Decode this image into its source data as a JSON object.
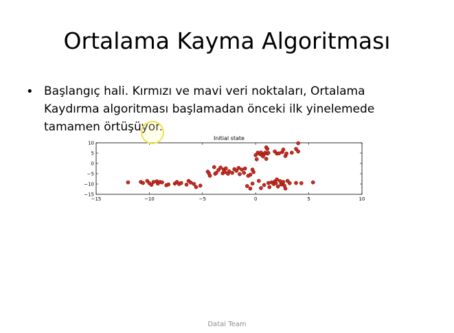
{
  "slide": {
    "title": "Ortalama Kayma Algoritması",
    "bullet": "Başlangıç hali. Kırmızı ve mavi veri noktaları, Ortalama Kaydırma algoritması başlamadan önceki ilk yinelemede tamamen örtüşüyor.",
    "footer": "Datai Team"
  },
  "chart_data": {
    "type": "scatter",
    "title": "Initial state",
    "xlabel": "",
    "ylabel": "",
    "xlim": [
      -15,
      10
    ],
    "ylim": [
      -15,
      10
    ],
    "xticks": [
      -15,
      -10,
      -5,
      0,
      5,
      10
    ],
    "yticks": [
      10,
      5,
      0,
      -5,
      -10,
      -15
    ],
    "xtick_labels": [
      "−15",
      "−10",
      "−5",
      "0",
      "5",
      "10"
    ],
    "ytick_labels": [
      "10",
      "5",
      "0",
      "−5",
      "−10",
      "−15"
    ],
    "grid": false,
    "legend": "none",
    "marker_color": "#cc2a1e",
    "points": [
      [
        -12.0,
        -9.2
      ],
      [
        -10.8,
        -9.0
      ],
      [
        -10.6,
        -9.5
      ],
      [
        -10.2,
        -8.5
      ],
      [
        -10.0,
        -9.6
      ],
      [
        -9.8,
        -10.4
      ],
      [
        -9.6,
        -9.0
      ],
      [
        -9.3,
        -8.7
      ],
      [
        -9.2,
        -9.8
      ],
      [
        -9.0,
        -9.0
      ],
      [
        -8.8,
        -9.2
      ],
      [
        -8.4,
        -10.6
      ],
      [
        -8.2,
        -10.2
      ],
      [
        -7.6,
        -9.8
      ],
      [
        -7.4,
        -9.0
      ],
      [
        -7.2,
        -10.0
      ],
      [
        -7.0,
        -9.5
      ],
      [
        -6.5,
        -10.3
      ],
      [
        -6.3,
        -8.5
      ],
      [
        -6.1,
        -9.3
      ],
      [
        -5.8,
        -10.0
      ],
      [
        -5.6,
        -11.5
      ],
      [
        -5.2,
        -10.8
      ],
      [
        -4.5,
        -4.0
      ],
      [
        -4.4,
        -4.8
      ],
      [
        -4.3,
        -6.0
      ],
      [
        -3.9,
        -1.8
      ],
      [
        -3.8,
        -5.0
      ],
      [
        -3.7,
        -4.6
      ],
      [
        -3.5,
        -3.2
      ],
      [
        -3.3,
        -2.0
      ],
      [
        -3.1,
        -4.8
      ],
      [
        -3.0,
        -3.0
      ],
      [
        -2.9,
        -4.2
      ],
      [
        -2.8,
        -2.4
      ],
      [
        -2.6,
        -5.0
      ],
      [
        -2.5,
        -3.8
      ],
      [
        -2.2,
        -4.6
      ],
      [
        -2.0,
        -2.8
      ],
      [
        -1.8,
        -3.6
      ],
      [
        -1.6,
        -2.2
      ],
      [
        -1.5,
        -5.2
      ],
      [
        -1.3,
        -3.0
      ],
      [
        -1.1,
        -4.6
      ],
      [
        -1.0,
        -2.5
      ],
      [
        -0.5,
        -5.5
      ],
      [
        -0.3,
        -3.0
      ],
      [
        -0.2,
        -4.2
      ],
      [
        -0.7,
        -6.0
      ],
      [
        -0.8,
        -11.0
      ],
      [
        -0.5,
        -12.2
      ],
      [
        -0.3,
        -9.8
      ],
      [
        0.0,
        4.0
      ],
      [
        0.1,
        2.0
      ],
      [
        0.2,
        5.2
      ],
      [
        0.4,
        4.6
      ],
      [
        0.5,
        5.3
      ],
      [
        0.6,
        4.0
      ],
      [
        0.7,
        3.4
      ],
      [
        0.8,
        4.6
      ],
      [
        0.9,
        5.2
      ],
      [
        1.0,
        2.2
      ],
      [
        1.1,
        4.8
      ],
      [
        1.2,
        5.1
      ],
      [
        1.0,
        7.8
      ],
      [
        1.1,
        7.0
      ],
      [
        0.3,
        -8.5
      ],
      [
        0.5,
        -12.0
      ],
      [
        0.8,
        -10.5
      ],
      [
        1.2,
        -9.5
      ],
      [
        1.3,
        -11.5
      ],
      [
        1.5,
        -9.2
      ],
      [
        1.7,
        -10.0
      ],
      [
        1.8,
        -8.8
      ],
      [
        1.9,
        -9.6
      ],
      [
        2.0,
        -7.8
      ],
      [
        2.1,
        -11.2
      ],
      [
        2.3,
        -8.6
      ],
      [
        2.4,
        -10.2
      ],
      [
        2.5,
        -9.8
      ],
      [
        2.6,
        -9.0
      ],
      [
        2.7,
        -10.8
      ],
      [
        2.8,
        -12.2
      ],
      [
        3.0,
        -8.5
      ],
      [
        3.2,
        -9.6
      ],
      [
        1.8,
        5.8
      ],
      [
        2.0,
        4.8
      ],
      [
        2.2,
        4.9
      ],
      [
        2.5,
        5.5
      ],
      [
        2.6,
        6.7
      ],
      [
        2.8,
        3.6
      ],
      [
        2.9,
        4.8
      ],
      [
        3.4,
        5.2
      ],
      [
        3.8,
        7.0
      ],
      [
        4.0,
        5.8
      ],
      [
        4.0,
        9.8
      ],
      [
        3.8,
        -9.5
      ],
      [
        4.3,
        -9.6
      ],
      [
        5.4,
        -9.2
      ]
    ]
  }
}
